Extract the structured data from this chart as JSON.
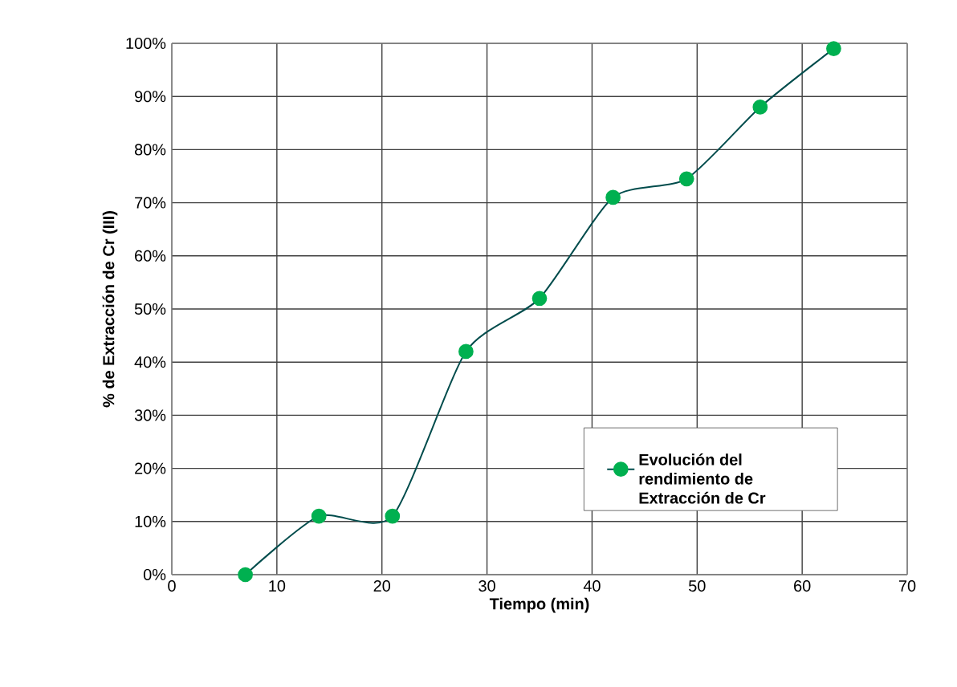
{
  "chart_data": {
    "type": "line",
    "xlabel": "Tiempo (min)",
    "ylabel": "% de Extracción de Cr (III)",
    "x": [
      7,
      14,
      21,
      28,
      35,
      42,
      49,
      56,
      63
    ],
    "series": [
      {
        "name": "Evolución del rendimiento de Extracción de Cr",
        "color": "#00b050",
        "values": [
          0,
          11,
          11,
          42,
          52,
          71,
          74.5,
          88,
          99
        ]
      }
    ],
    "xlim": [
      0,
      70
    ],
    "xticks": [
      0,
      10,
      20,
      30,
      40,
      50,
      60,
      70
    ],
    "ylim": [
      0,
      100
    ],
    "yticks": [
      {
        "value": 0,
        "label": "0%"
      },
      {
        "value": 10,
        "label": "10%"
      },
      {
        "value": 20,
        "label": "20%"
      },
      {
        "value": 30,
        "label": "30%"
      },
      {
        "value": 40,
        "label": "40%"
      },
      {
        "value": 50,
        "label": "50%"
      },
      {
        "value": 60,
        "label": "60%"
      },
      {
        "value": 70,
        "label": "70%"
      },
      {
        "value": 80,
        "label": "80%"
      },
      {
        "value": 90,
        "label": "90%"
      },
      {
        "value": 100,
        "label": "100%"
      }
    ],
    "grid": true,
    "legend": "right",
    "marker": "circle",
    "line_style": "solid"
  }
}
